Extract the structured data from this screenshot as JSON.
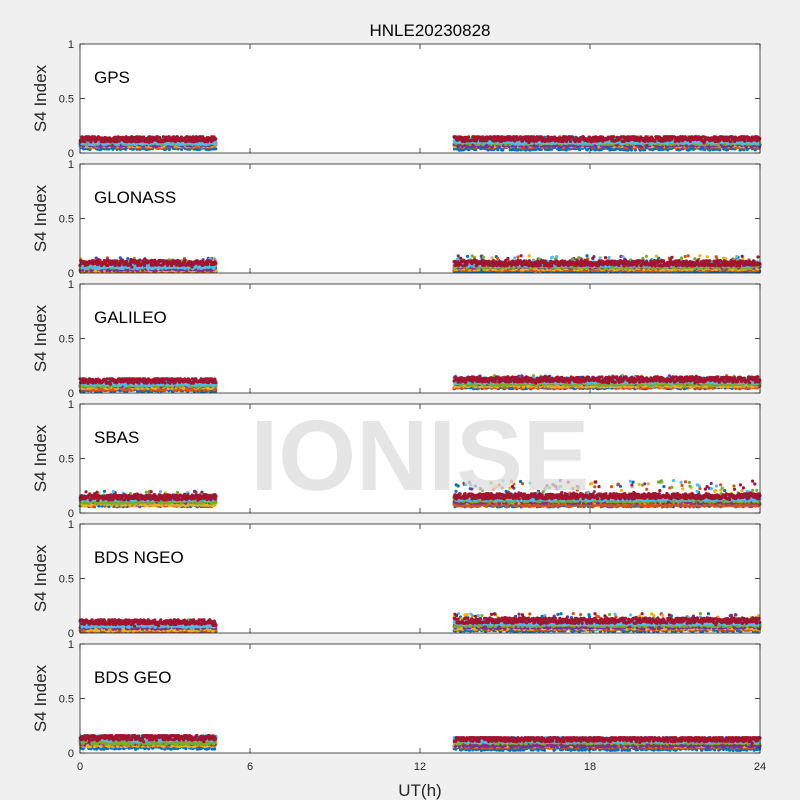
{
  "chart_data": {
    "type": "scatter",
    "title": "HNLE20230828",
    "xlabel": "UT(h)",
    "ylabel": "S4 Index",
    "xlim": [
      0,
      24
    ],
    "ylim": [
      0,
      1
    ],
    "xticks": [
      "0",
      "6",
      "12",
      "18",
      "24"
    ],
    "yticks": [
      "0",
      "0.5",
      "1"
    ],
    "watermark": "IONISE",
    "grid": false,
    "data_gap_hours": [
      4.8,
      13.2
    ],
    "series_colors": [
      "#0072BD",
      "#D95319",
      "#EDB120",
      "#7E2F8E",
      "#77AC30",
      "#4DBEEE",
      "#A2142F"
    ],
    "panels": [
      {
        "label": "GPS",
        "segments": [
          {
            "x_start": 0,
            "x_end": 4.8,
            "s4_baseline": 0.09,
            "s4_peak": 0.15
          },
          {
            "x_start": 13.2,
            "x_end": 24,
            "s4_baseline": 0.09,
            "s4_peak": 0.15
          }
        ]
      },
      {
        "label": "GLONASS",
        "segments": [
          {
            "x_start": 0,
            "x_end": 4.8,
            "s4_baseline": 0.05,
            "s4_peak": 0.14
          },
          {
            "x_start": 13.2,
            "x_end": 24,
            "s4_baseline": 0.06,
            "s4_peak": 0.16
          }
        ]
      },
      {
        "label": "GALILEO",
        "segments": [
          {
            "x_start": 0,
            "x_end": 4.8,
            "s4_baseline": 0.08,
            "s4_peak": 0.13
          },
          {
            "x_start": 13.2,
            "x_end": 24,
            "s4_baseline": 0.09,
            "s4_peak": 0.16
          }
        ]
      },
      {
        "label": "SBAS",
        "segments": [
          {
            "x_start": 0,
            "x_end": 4.8,
            "s4_baseline": 0.11,
            "s4_peak": 0.2
          },
          {
            "x_start": 13.2,
            "x_end": 24,
            "s4_baseline": 0.12,
            "s4_peak": 0.3
          }
        ]
      },
      {
        "label": "BDS NGEO",
        "segments": [
          {
            "x_start": 0,
            "x_end": 4.8,
            "s4_baseline": 0.06,
            "s4_peak": 0.12
          },
          {
            "x_start": 13.2,
            "x_end": 24,
            "s4_baseline": 0.07,
            "s4_peak": 0.18
          }
        ]
      },
      {
        "label": "BDS GEO",
        "segments": [
          {
            "x_start": 0,
            "x_end": 4.8,
            "s4_baseline": 0.1,
            "s4_peak": 0.16
          },
          {
            "x_start": 13.2,
            "x_end": 24,
            "s4_baseline": 0.09,
            "s4_peak": 0.14
          }
        ]
      }
    ]
  }
}
